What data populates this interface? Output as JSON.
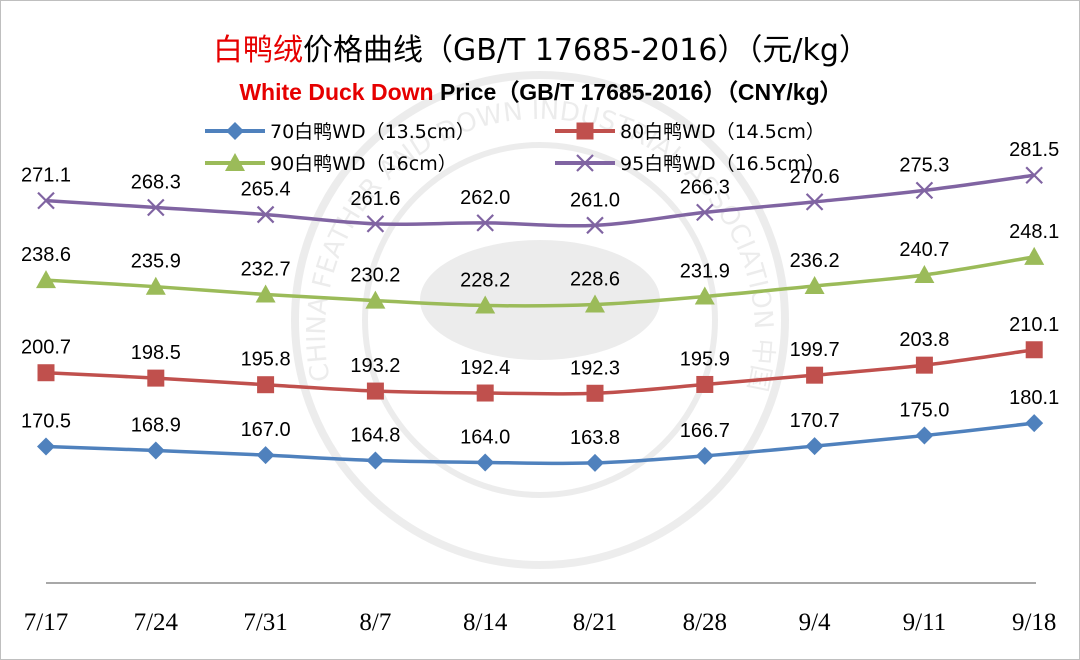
{
  "title_cn_red": "白鸭绒",
  "title_cn_rest": "价格曲线（GB/T 17685-2016）（元/kg）",
  "title_en_red": "White Duck Down",
  "title_en_rest": " Price（GB/T 17685-2016）（CNY/kg）",
  "watermark_text": "CHINA FEATHER AND DOWN INDUSTRIAL ASSOCIATION 中国羽绒工业协会",
  "chart_data": {
    "type": "line",
    "title": "白鸭绒价格曲线（GB/T 17685-2016）（元/kg） White Duck Down Price（GB/T 17685-2016）（CNY/kg）",
    "categories": [
      "7/17",
      "7/24",
      "7/31",
      "8/7",
      "8/14",
      "8/21",
      "8/28",
      "9/4",
      "9/11",
      "9/18"
    ],
    "ylim": [
      120,
      300
    ],
    "grid": false,
    "legend_position": "top",
    "series": [
      {
        "name": "70白鸭WD（13.5cm）",
        "marker": "diamond",
        "color": "#4f81bd",
        "values": [
          170.5,
          168.9,
          167.0,
          164.8,
          164.0,
          163.8,
          166.7,
          170.7,
          175.0,
          180.1
        ],
        "labels": [
          "170.5",
          "168.9",
          "167.0",
          "164.8",
          "164.0",
          "163.8",
          "166.7",
          "170.7",
          "175.0",
          "180.1"
        ]
      },
      {
        "name": "80白鸭WD（14.5cm）",
        "marker": "square",
        "color": "#c0504d",
        "values": [
          200.7,
          198.5,
          195.8,
          193.2,
          192.4,
          192.3,
          195.9,
          199.7,
          203.8,
          210.1
        ],
        "labels": [
          "200.7",
          "198.5",
          "195.8",
          "193.2",
          "192.4",
          "192.3",
          "195.9",
          "199.7",
          "203.8",
          "210.1"
        ]
      },
      {
        "name": "90白鸭WD（16cm）",
        "marker": "triangle",
        "color": "#9bbb59",
        "values": [
          238.6,
          235.9,
          232.7,
          230.2,
          228.2,
          228.6,
          231.9,
          236.2,
          240.7,
          248.1
        ],
        "labels": [
          "238.6",
          "235.9",
          "232.7",
          "230.2",
          "228.2",
          "228.6",
          "231.9",
          "236.2",
          "240.7",
          "248.1"
        ]
      },
      {
        "name": "95白鸭WD（16.5cm）",
        "marker": "x",
        "color": "#8064a2",
        "values": [
          271.1,
          268.3,
          265.4,
          261.6,
          262.0,
          261.0,
          266.3,
          270.6,
          275.3,
          281.5
        ],
        "labels": [
          "271.1",
          "268.3",
          "265.4",
          "261.6",
          "262.0",
          "261.0",
          "266.3",
          "270.6",
          "275.3",
          "281.5"
        ]
      }
    ]
  }
}
